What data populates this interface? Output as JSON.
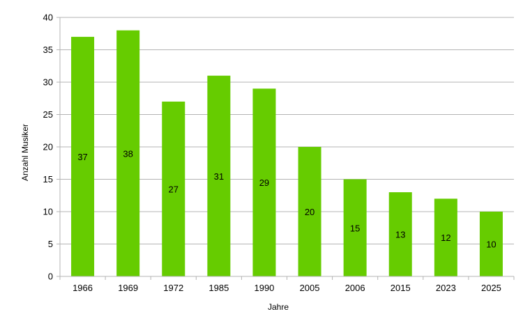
{
  "chart_data": {
    "type": "bar",
    "title": "",
    "xlabel": "Jahre",
    "ylabel": "Anzahl Musiker",
    "categories": [
      "1966",
      "1969",
      "1972",
      "1985",
      "1990",
      "2005",
      "2006",
      "2015",
      "2023",
      "2025"
    ],
    "values": [
      37,
      38,
      27,
      31,
      29,
      20,
      15,
      13,
      12,
      10
    ],
    "ylim": [
      0,
      40
    ],
    "yticks": [
      0,
      5,
      10,
      15,
      20,
      25,
      30,
      35,
      40
    ],
    "grid": true,
    "legend": "none",
    "data_labels": true,
    "bar_color": "#66cc00",
    "grid_color": "#b3b3b3",
    "axis_color": "#b3b3b3"
  }
}
